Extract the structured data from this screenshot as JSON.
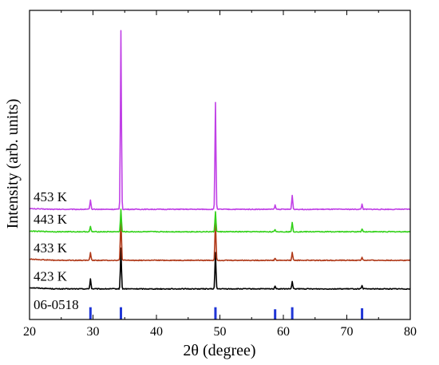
{
  "chart_data": {
    "type": "line",
    "title": "",
    "xlabel": "2θ (degree)",
    "ylabel": "Intensity (arb. units)",
    "xlim": [
      20,
      80
    ],
    "x_ticks": [
      "20",
      "30",
      "40",
      "50",
      "60",
      "70",
      "80"
    ],
    "y_ticks": [],
    "grid": false,
    "legend": "none",
    "series": [
      {
        "name": "423 K",
        "color": "#000000",
        "baseline": 0.3,
        "noise": 0.004,
        "lowx_bump": 0.012,
        "peaks": [
          {
            "x": 29.6,
            "h": 0.1
          },
          {
            "x": 34.4,
            "h": 0.4
          },
          {
            "x": 49.3,
            "h": 0.36
          },
          {
            "x": 58.7,
            "h": 0.03
          },
          {
            "x": 61.4,
            "h": 0.07
          },
          {
            "x": 72.4,
            "h": 0.03
          }
        ]
      },
      {
        "name": "433 K",
        "color": "#b03a1a",
        "baseline": 0.58,
        "noise": 0.004,
        "lowx_bump": 0.012,
        "peaks": [
          {
            "x": 29.6,
            "h": 0.08
          },
          {
            "x": 34.4,
            "h": 0.45
          },
          {
            "x": 49.3,
            "h": 0.4
          },
          {
            "x": 58.7,
            "h": 0.02
          },
          {
            "x": 61.4,
            "h": 0.08
          },
          {
            "x": 72.4,
            "h": 0.03
          }
        ]
      },
      {
        "name": "443 K",
        "color": "#33d11a",
        "baseline": 0.86,
        "noise": 0.004,
        "lowx_bump": 0.006,
        "peaks": [
          {
            "x": 29.6,
            "h": 0.05
          },
          {
            "x": 34.4,
            "h": 0.22
          },
          {
            "x": 49.3,
            "h": 0.2
          },
          {
            "x": 58.7,
            "h": 0.02
          },
          {
            "x": 61.4,
            "h": 0.09
          },
          {
            "x": 72.4,
            "h": 0.03
          }
        ]
      },
      {
        "name": "453 K",
        "color": "#c040e6",
        "baseline": 1.08,
        "noise": 0.004,
        "lowx_bump": 0.006,
        "peaks": [
          {
            "x": 29.6,
            "h": 0.09
          },
          {
            "x": 34.4,
            "h": 1.75
          },
          {
            "x": 49.3,
            "h": 1.05
          },
          {
            "x": 58.7,
            "h": 0.04
          },
          {
            "x": 61.4,
            "h": 0.14
          },
          {
            "x": 72.4,
            "h": 0.05
          }
        ]
      }
    ],
    "reference": {
      "name": "06-0518",
      "color": "#1f35d6",
      "baseline": 0.0,
      "lines": [
        {
          "x": 29.6,
          "h": 0.12
        },
        {
          "x": 34.4,
          "h": 0.12
        },
        {
          "x": 49.3,
          "h": 0.12
        },
        {
          "x": 58.7,
          "h": 0.1
        },
        {
          "x": 61.4,
          "h": 0.12
        },
        {
          "x": 72.4,
          "h": 0.11
        }
      ]
    },
    "ylim": [
      0,
      3.03
    ]
  }
}
